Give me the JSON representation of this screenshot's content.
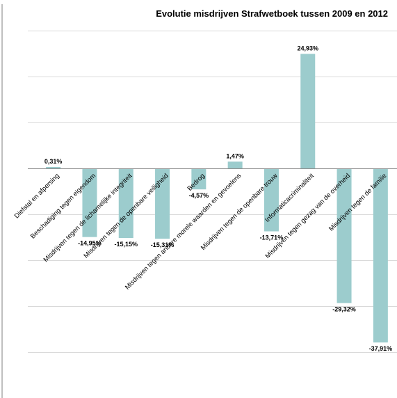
{
  "chart_data": {
    "type": "bar",
    "title": "Evolutie misdrijven Strafwetboek tussen 2009 en 2012",
    "categories": [
      "Diefstal en afpersing",
      "Beschadiging tegen eigendom",
      "Misdrijven tegen de lichamelijke integriteit",
      "Misdrijven tegen de openbare veiligheid",
      "Bedrog",
      "Misdrijven tegen andere morele waarden en gevoelens",
      "Misdrijven tegen de openbare trouw",
      "Informaticacriminaliteit",
      "Misdrijven tegen gezag van de overheid",
      "Misdrijven tegen de familie"
    ],
    "values": [
      0.31,
      -14.95,
      -15.15,
      -15.31,
      -4.57,
      1.47,
      -13.71,
      24.93,
      -29.32,
      -37.91
    ],
    "value_labels": [
      "0,31%",
      "-14,95%",
      "-15,15%",
      "-15,31%",
      "-4,57%",
      "1,47%",
      "-13,71%",
      "24,93%",
      "-29,32%",
      "-37,91%"
    ],
    "ylim": [
      -50,
      30
    ],
    "gridline_step": 10,
    "grid": true,
    "colors": {
      "bar": "#9ccccd",
      "grid": "#d9d9d9",
      "axis": "#8c8c8c"
    }
  }
}
